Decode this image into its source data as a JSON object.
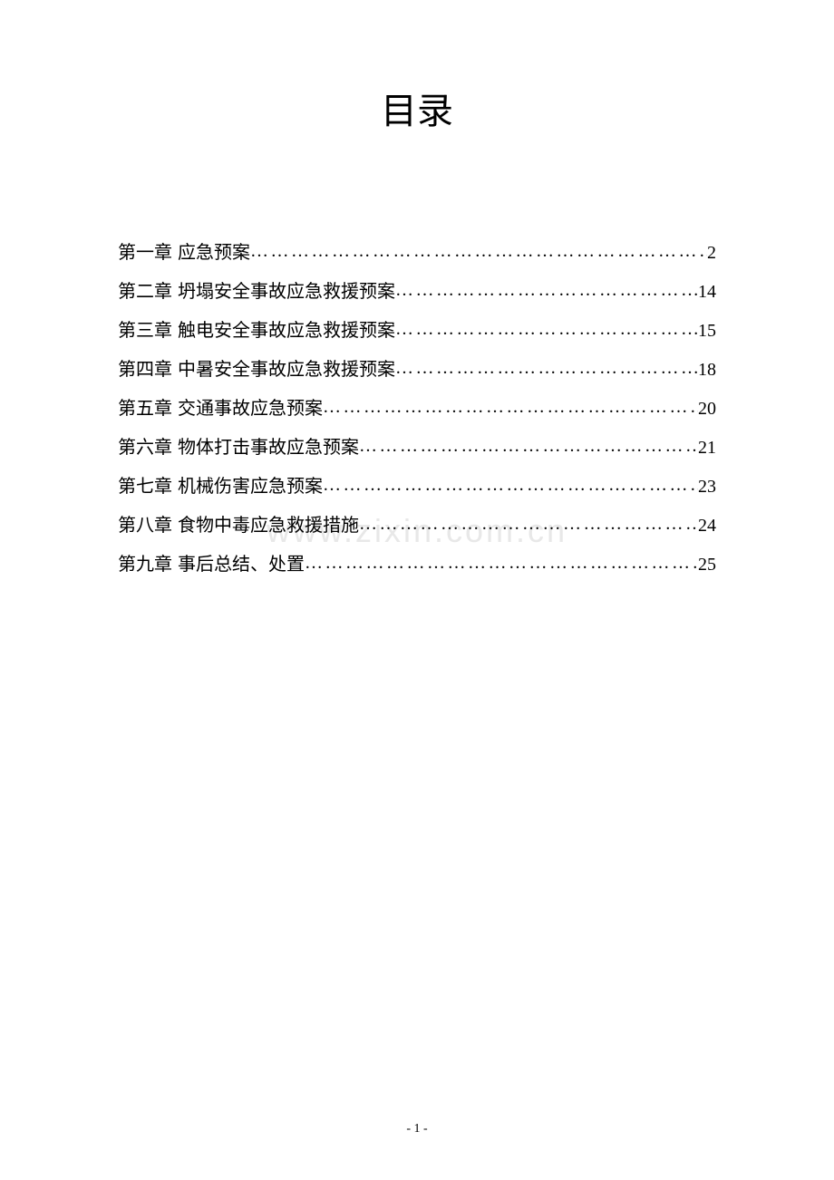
{
  "page": {
    "title": "目录",
    "watermark": "www.zixin.com.cn",
    "page_number": "- 1 -",
    "background_color": "#ffffff",
    "text_color": "#000000",
    "watermark_color": "#e8e8e8",
    "title_fontsize": 40,
    "body_fontsize": 20,
    "font_family": "SimSun"
  },
  "toc": {
    "entries": [
      {
        "chapter": "第一章",
        "title": "应急预案",
        "page": "2"
      },
      {
        "chapter": "第二章",
        "title": "坍塌安全事故应急救援预案",
        "page": "14"
      },
      {
        "chapter": "第三章",
        "title": "触电安全事故应急救援预案",
        "page": "15"
      },
      {
        "chapter": "第四章",
        "title": "中暑安全事故应急救援预案",
        "page": "18"
      },
      {
        "chapter": "第五章",
        "title": "交通事故应急预案",
        "page": "20"
      },
      {
        "chapter": "第六章",
        "title": "物体打击事故应急预案",
        "page": "21"
      },
      {
        "chapter": "第七章",
        "title": "机械伤害应急预案",
        "page": "23"
      },
      {
        "chapter": "第八章",
        "title": "食物中毒应急救援措施",
        "page": "24"
      },
      {
        "chapter": "第九章",
        "title": "事后总结、处置",
        "page": "25"
      }
    ]
  }
}
